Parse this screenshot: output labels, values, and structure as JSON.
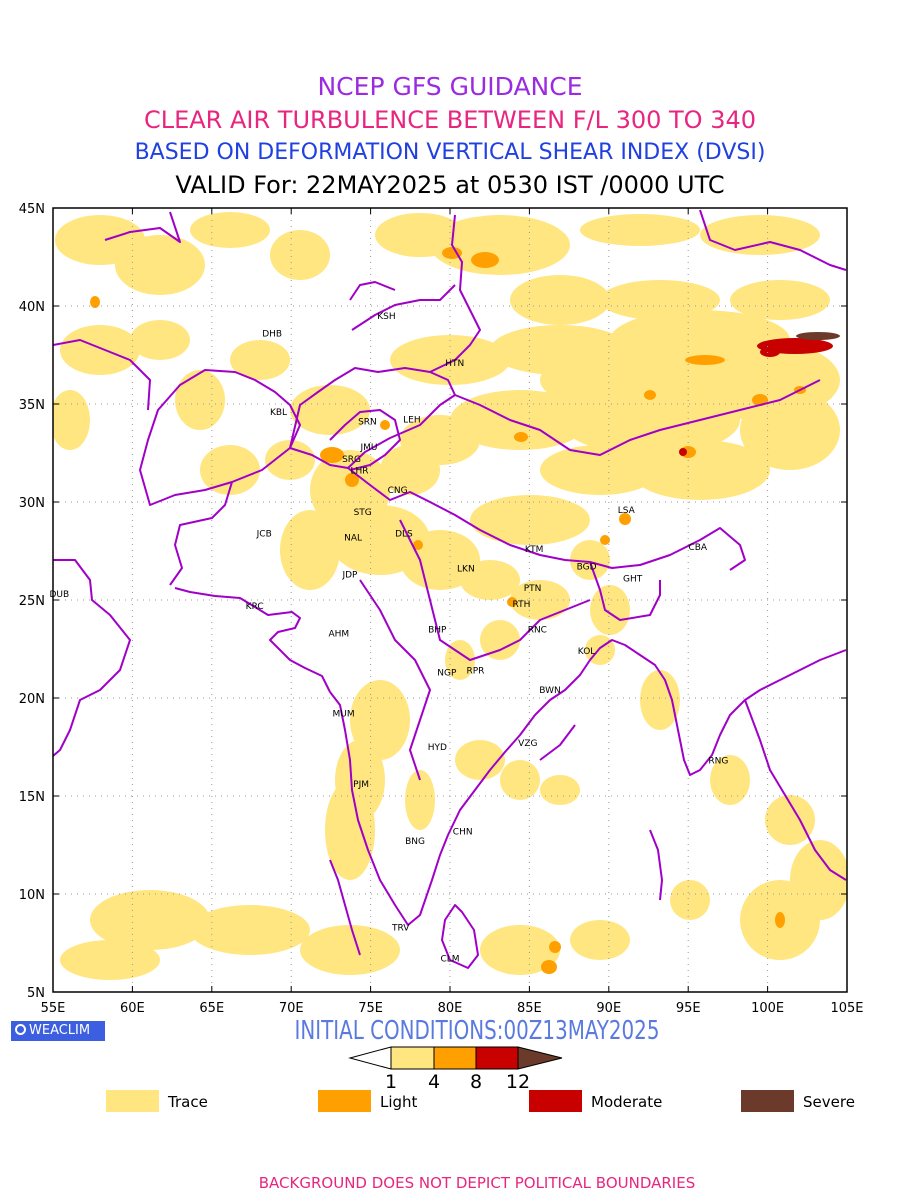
{
  "titles": {
    "line1": "NCEP GFS GUIDANCE",
    "line2": "CLEAR AIR TURBULENCE BETWEEN F/L 300 TO 340",
    "line3": "BASED ON DEFORMATION VERTICAL SHEAR INDEX (DVSI)",
    "line4": "VALID For: 22MAY2025 at 0530 IST /0000 UTC"
  },
  "colors": {
    "title1": "#9b2be0",
    "title2": "#e8257f",
    "title3": "#2040e0",
    "title4": "#000000",
    "boundary": "#a000c8",
    "trace": "#ffe680",
    "light": "#ffa000",
    "moderate": "#c80000",
    "severe": "#6b3a2a",
    "init": "#5a7ae0",
    "footer": "#e8257f"
  },
  "axes": {
    "lon_labels": [
      "55E",
      "60E",
      "65E",
      "70E",
      "75E",
      "80E",
      "85E",
      "90E",
      "95E",
      "100E",
      "105E"
    ],
    "lat_labels": [
      "45N",
      "40N",
      "35N",
      "30N",
      "25N",
      "20N",
      "15N",
      "10N",
      "5N"
    ],
    "lon_range": [
      55,
      105
    ],
    "lat_range": [
      5,
      45
    ],
    "grid": true
  },
  "stations": [
    {
      "name": "KSH",
      "lon": 76.0,
      "lat": 39.5
    },
    {
      "name": "DHB",
      "lon": 68.8,
      "lat": 38.6
    },
    {
      "name": "HTN",
      "lon": 80.3,
      "lat": 37.1
    },
    {
      "name": "KBL",
      "lon": 69.2,
      "lat": 34.6
    },
    {
      "name": "SRN",
      "lon": 74.8,
      "lat": 34.1
    },
    {
      "name": "LEH",
      "lon": 77.6,
      "lat": 34.2
    },
    {
      "name": "JMU",
      "lon": 74.9,
      "lat": 32.8
    },
    {
      "name": "SRG",
      "lon": 73.8,
      "lat": 32.2
    },
    {
      "name": "LHR",
      "lon": 74.3,
      "lat": 31.6
    },
    {
      "name": "CNG",
      "lon": 76.7,
      "lat": 30.6
    },
    {
      "name": "STG",
      "lon": 74.5,
      "lat": 29.5
    },
    {
      "name": "JCB",
      "lon": 68.3,
      "lat": 28.4
    },
    {
      "name": "NAL",
      "lon": 73.9,
      "lat": 28.2
    },
    {
      "name": "DLS",
      "lon": 77.1,
      "lat": 28.4
    },
    {
      "name": "LSA",
      "lon": 91.1,
      "lat": 29.6
    },
    {
      "name": "KTM",
      "lon": 85.3,
      "lat": 27.6
    },
    {
      "name": "CBA",
      "lon": 95.6,
      "lat": 27.7
    },
    {
      "name": "BGD",
      "lon": 88.6,
      "lat": 26.7
    },
    {
      "name": "JDP",
      "lon": 73.7,
      "lat": 26.3
    },
    {
      "name": "LKN",
      "lon": 81.0,
      "lat": 26.6
    },
    {
      "name": "GHT",
      "lon": 91.5,
      "lat": 26.1
    },
    {
      "name": "DUB",
      "lon": 55.4,
      "lat": 25.3
    },
    {
      "name": "PTN",
      "lon": 85.2,
      "lat": 25.6
    },
    {
      "name": "RTH",
      "lon": 84.5,
      "lat": 24.8
    },
    {
      "name": "KRC",
      "lon": 67.7,
      "lat": 24.7
    },
    {
      "name": "AHM",
      "lon": 73.0,
      "lat": 23.3
    },
    {
      "name": "BHP",
      "lon": 79.2,
      "lat": 23.5
    },
    {
      "name": "RNC",
      "lon": 85.5,
      "lat": 23.5
    },
    {
      "name": "KOL",
      "lon": 88.6,
      "lat": 22.4
    },
    {
      "name": "RPR",
      "lon": 81.6,
      "lat": 21.4
    },
    {
      "name": "NGP",
      "lon": 79.8,
      "lat": 21.3
    },
    {
      "name": "BWN",
      "lon": 86.3,
      "lat": 20.4
    },
    {
      "name": "MUM",
      "lon": 73.3,
      "lat": 19.2
    },
    {
      "name": "HYD",
      "lon": 79.2,
      "lat": 17.5
    },
    {
      "name": "VZG",
      "lon": 84.9,
      "lat": 17.7
    },
    {
      "name": "RNG",
      "lon": 96.9,
      "lat": 16.8
    },
    {
      "name": "PJM",
      "lon": 74.4,
      "lat": 15.6
    },
    {
      "name": "CHN",
      "lon": 80.8,
      "lat": 13.2
    },
    {
      "name": "BNG",
      "lon": 77.8,
      "lat": 12.7
    },
    {
      "name": "TRV",
      "lon": 76.9,
      "lat": 8.3
    },
    {
      "name": "CLM",
      "lon": 80.0,
      "lat": 6.7
    }
  ],
  "colorbar": {
    "ticks": [
      "1",
      "4",
      "8",
      "12"
    ]
  },
  "legend": [
    {
      "label": "Trace",
      "color": "#ffe680"
    },
    {
      "label": "Light",
      "color": "#ffa000"
    },
    {
      "label": "Moderate",
      "color": "#c80000"
    },
    {
      "label": "Severe",
      "color": "#6b3a2a"
    }
  ],
  "branding": {
    "logo_text": "WEACLIM"
  },
  "initial_conditions": "INITIAL CONDITIONS:00Z13MAY2025",
  "footer": "BACKGROUND DOES NOT DEPICT POLITICAL BOUNDARIES"
}
